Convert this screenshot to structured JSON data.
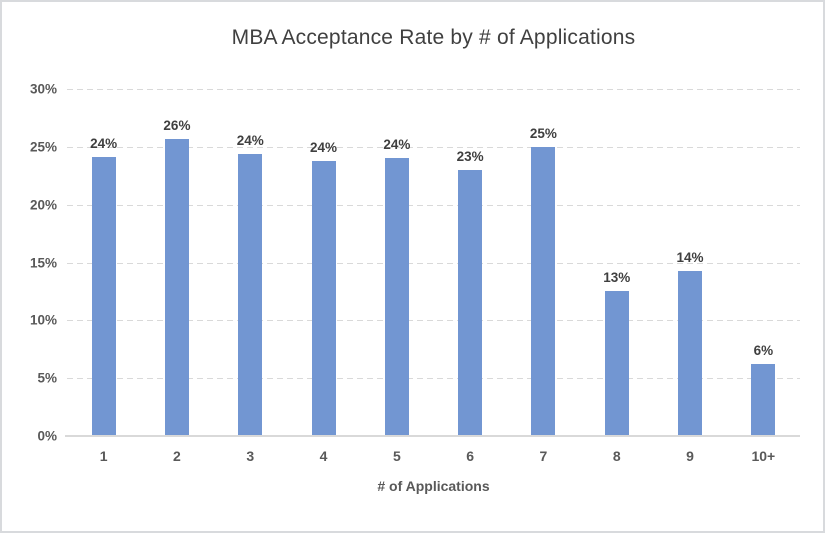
{
  "chart_data": {
    "type": "bar",
    "title": "MBA Acceptance Rate by # of Applications",
    "xlabel": "# of Applications",
    "ylabel": "",
    "categories": [
      "1",
      "2",
      "3",
      "4",
      "5",
      "6",
      "7",
      "8",
      "9",
      "10+"
    ],
    "values": [
      24.1,
      25.7,
      24.4,
      23.8,
      24.0,
      23.0,
      25.0,
      12.5,
      14.3,
      6.2
    ],
    "bar_labels": [
      "24%",
      "26%",
      "24%",
      "24%",
      "24%",
      "23%",
      "25%",
      "13%",
      "14%",
      "6%"
    ],
    "ylim": [
      0,
      30
    ],
    "y_ticks": [
      0,
      5,
      10,
      15,
      20,
      25,
      30
    ],
    "y_tick_labels": [
      "0%",
      "5%",
      "10%",
      "15%",
      "20%",
      "25%",
      "30%"
    ],
    "grid": "horizontal-dashed",
    "legend": false,
    "colors": {
      "bar": "#7296D2",
      "gridline": "#D9D9D9",
      "axis_line": "#D9D9D9",
      "tick_text": "#595959",
      "data_label_text": "#3F3F3F",
      "title_text": "#404040",
      "frame_border": "#D8DADD"
    }
  }
}
